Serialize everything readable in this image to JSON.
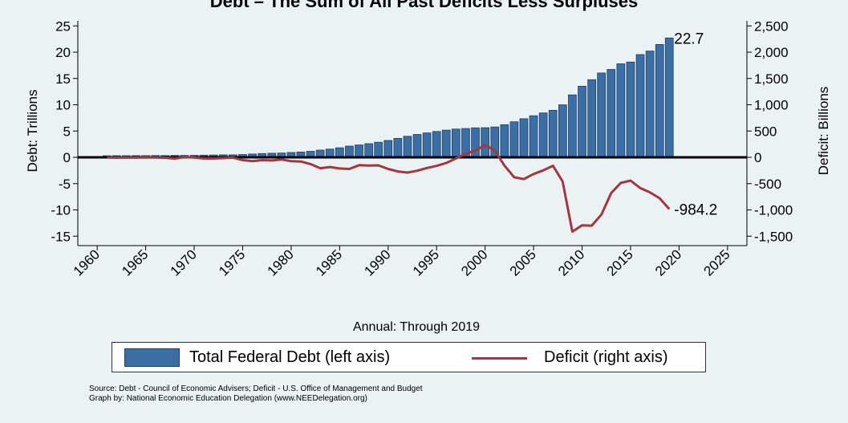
{
  "chart_data": {
    "type": "bar",
    "title": "Debt – The Sum of All Past Deficits Less Surpluses",
    "xlabel": "Annual: Through 2019",
    "ylabel_left": "Debt: Trillions",
    "ylabel_right": "Deficit: Billions",
    "xlim": [
      1958,
      2027
    ],
    "ylim_left": [
      -17,
      26
    ],
    "ylim_right": [
      -1700,
      2600
    ],
    "x_ticks": [
      1960,
      1965,
      1970,
      1975,
      1980,
      1985,
      1990,
      1995,
      2000,
      2005,
      2010,
      2015,
      2020,
      2025
    ],
    "y_ticks_left": [
      25,
      20,
      15,
      10,
      5,
      0,
      -5,
      -10,
      -15
    ],
    "y_ticks_right": [
      2500,
      2000,
      1500,
      1000,
      500,
      0,
      -500,
      -1000,
      -1500
    ],
    "y_tick_labels_right": [
      "2,500",
      "2,000",
      "1,500",
      "1,000",
      "500",
      "0",
      "-500",
      "-1,000",
      "-1,500"
    ],
    "grid": false,
    "years": [
      1961,
      1962,
      1963,
      1964,
      1965,
      1966,
      1967,
      1968,
      1969,
      1970,
      1971,
      1972,
      1973,
      1974,
      1975,
      1976,
      1977,
      1978,
      1979,
      1980,
      1981,
      1982,
      1983,
      1984,
      1985,
      1986,
      1987,
      1988,
      1989,
      1990,
      1991,
      1992,
      1993,
      1994,
      1995,
      1996,
      1997,
      1998,
      1999,
      2000,
      2001,
      2002,
      2003,
      2004,
      2005,
      2006,
      2007,
      2008,
      2009,
      2010,
      2011,
      2012,
      2013,
      2014,
      2015,
      2016,
      2017,
      2018,
      2019
    ],
    "series": [
      {
        "name": "Total Federal Debt (left axis)",
        "type": "bar",
        "axis": "left",
        "color": "#3a6ea5",
        "values": [
          0.29,
          0.3,
          0.31,
          0.32,
          0.32,
          0.33,
          0.34,
          0.37,
          0.37,
          0.38,
          0.41,
          0.44,
          0.47,
          0.48,
          0.54,
          0.63,
          0.71,
          0.78,
          0.83,
          0.91,
          1.0,
          1.14,
          1.37,
          1.56,
          1.82,
          2.13,
          2.35,
          2.6,
          2.87,
          3.21,
          3.6,
          4.0,
          4.35,
          4.64,
          4.92,
          5.18,
          5.37,
          5.48,
          5.61,
          5.63,
          5.77,
          6.2,
          6.76,
          7.35,
          7.91,
          8.45,
          8.95,
          9.99,
          11.88,
          13.53,
          14.76,
          16.05,
          16.72,
          17.79,
          18.12,
          19.54,
          20.21,
          21.46,
          22.7
        ]
      },
      {
        "name": "Deficit (right axis)",
        "type": "line",
        "axis": "right",
        "color": "#a5353f",
        "values": [
          -3,
          -7,
          -5,
          -6,
          -1,
          -4,
          -9,
          -25,
          3,
          -3,
          -23,
          -23,
          -15,
          -6,
          -53,
          -74,
          -54,
          -59,
          -41,
          -74,
          -79,
          -128,
          -208,
          -185,
          -212,
          -221,
          -150,
          -155,
          -153,
          -221,
          -269,
          -290,
          -255,
          -203,
          -164,
          -107,
          -22,
          69,
          126,
          236,
          128,
          -158,
          -378,
          -413,
          -318,
          -248,
          -161,
          -459,
          -1413,
          -1294,
          -1300,
          -1087,
          -680,
          -485,
          -442,
          -585,
          -665,
          -779,
          -984.2
        ]
      }
    ],
    "annotations": [
      {
        "text": "22.7",
        "x": 2019,
        "y": 22.7,
        "axis": "left"
      },
      {
        "text": "-984.2",
        "x": 2019,
        "y": -984.2,
        "axis": "right"
      }
    ],
    "legend": {
      "position": "bottom",
      "items": [
        {
          "label": "Total Federal Debt (left axis)",
          "color": "#3a6ea5",
          "kind": "bar"
        },
        {
          "label": "Deficit (right axis)",
          "color": "#a5353f",
          "kind": "line"
        }
      ]
    }
  },
  "source_line_1": "Source: Debt - Council of Economic Advisers; Deficit - U.S. Office of Management and Budget",
  "source_line_2": "Graph by: National Economic Education Delegation (www.NEEDelegation.org)"
}
